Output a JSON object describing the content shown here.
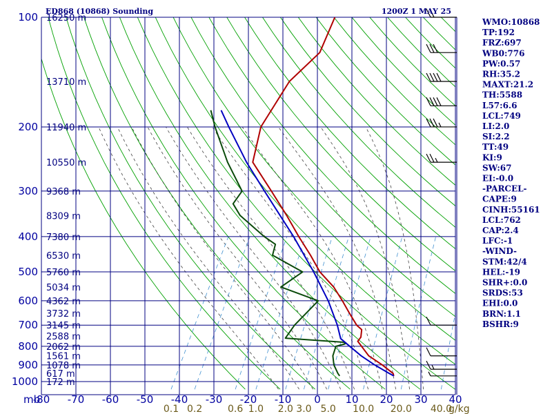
{
  "title_left": "ED868 (10868) Sounding",
  "title_right": "1200Z  1 MAY 25",
  "unit_label": "mb",
  "mixing_unit": "g/kg",
  "colors": {
    "frame": "#000080",
    "temperature": "#b00000",
    "dewpoint": "#0a4a0a",
    "parcel": "#0000c0",
    "dry_adiabat": "#00a000",
    "moist_adiabat": "#404040",
    "mixing_ratio": "#4090d0",
    "wind": "#000000"
  },
  "indices": [
    "WMO:10868",
    "TP:192",
    "FRZ:697",
    "WB0:776",
    "PW:0.57",
    "RH:35.2",
    "MAXT:21.2",
    "TH:5588",
    "L57:6.6",
    "LCL:749",
    "LI:2.0",
    "SI:2.2",
    "TT:49",
    "KI:9",
    "SW:67",
    "EI:-0.0",
    "-PARCEL-",
    "CAPE:9",
    "CINH:55161",
    "LCL:762",
    "CAP:2.4",
    "LFC:-1",
    "-WIND-",
    "STM:42/4",
    "HEL:-19",
    "SHR+:0.0",
    "SRDS:53",
    "EHI:0.0",
    "BRN:1.1",
    "BSHR:9"
  ],
  "chart_data": {
    "type": "skew-t",
    "title": "ED868 (10868) Sounding",
    "xlabel": "",
    "ylabel": "mb",
    "pressure_axis": {
      "range": [
        1000,
        100
      ],
      "scale": "log",
      "ticks": [
        "100",
        "200",
        "300",
        "400",
        "500",
        "600",
        "700",
        "800",
        "900",
        "1000"
      ]
    },
    "temperature_axis": {
      "range": [
        -80,
        40
      ],
      "ticks": [
        "-80",
        "-70",
        "-60",
        "-50",
        "-40",
        "-30",
        "-20",
        "-10",
        "0",
        "10",
        "20",
        "30",
        "40"
      ]
    },
    "mixing_ratio_ticks": [
      "0.1",
      "0.2",
      "0.6",
      "1.0",
      "2.0",
      "3.0",
      "5.0",
      "10.0",
      "20.0",
      "40.0"
    ],
    "height_labels": [
      {
        "p": 100,
        "text": "16250 m"
      },
      {
        "p": 150,
        "text": "13710 m"
      },
      {
        "p": 200,
        "text": "11940 m"
      },
      {
        "p": 250,
        "text": "10550 m"
      },
      {
        "p": 300,
        "text": "9368 m"
      },
      {
        "p": 350,
        "text": "8309 m"
      },
      {
        "p": 400,
        "text": "7380 m"
      },
      {
        "p": 450,
        "text": "6530 m"
      },
      {
        "p": 500,
        "text": "5760 m"
      },
      {
        "p": 550,
        "text": "5034 m"
      },
      {
        "p": 600,
        "text": "4362 m"
      },
      {
        "p": 650,
        "text": "3732 m"
      },
      {
        "p": 700,
        "text": "3145 m"
      },
      {
        "p": 750,
        "text": "2588 m"
      },
      {
        "p": 800,
        "text": "2062 m"
      },
      {
        "p": 850,
        "text": "1561 m"
      },
      {
        "p": 900,
        "text": "1078 m"
      },
      {
        "p": 950,
        "text": "617 m"
      },
      {
        "p": 1000,
        "text": "172 m"
      }
    ],
    "series": [
      {
        "points": [
          [
            965,
            21.2
          ],
          [
            950,
            20.6
          ],
          [
            900,
            16.0
          ],
          [
            850,
            10.6
          ],
          [
            775,
            5.0
          ],
          [
            755,
            5.2
          ],
          [
            720,
            4.2
          ],
          [
            700,
            2.0
          ],
          [
            650,
            -2.0
          ],
          [
            600,
            -6.2
          ],
          [
            550,
            -11.0
          ],
          [
            500,
            -17.5
          ],
          [
            450,
            -23.0
          ],
          [
            400,
            -29.5
          ],
          [
            350,
            -36.5
          ],
          [
            300,
            -45.0
          ],
          [
            250,
            -55.2
          ],
          [
            200,
            -58.7
          ],
          [
            150,
            -58.0
          ],
          [
            125,
            -54.0
          ],
          [
            100,
            -55.5
          ]
        ]
      },
      {
        "points": [
          [
            965,
            5.5
          ],
          [
            950,
            4.6
          ],
          [
            900,
            2.0
          ],
          [
            850,
            0.2
          ],
          [
            800,
            -0.5
          ],
          [
            790,
            1.5
          ],
          [
            785,
            2.0
          ],
          [
            780,
            1.0
          ],
          [
            775,
            -3.0
          ],
          [
            760,
            -16.5
          ],
          [
            700,
            -16.0
          ],
          [
            600,
            -13.2
          ],
          [
            550,
            -26.3
          ],
          [
            500,
            -22.5
          ],
          [
            450,
            -34.0
          ],
          [
            420,
            -35.0
          ],
          [
            400,
            -39.5
          ],
          [
            350,
            -50.0
          ],
          [
            325,
            -54.0
          ],
          [
            300,
            -53.5
          ],
          [
            250,
            -62.5
          ],
          [
            200,
            -72.0
          ],
          [
            180,
            -76.0
          ]
        ]
      },
      {
        "points": [
          [
            965,
            21.2
          ],
          [
            950,
            19.5
          ],
          [
            900,
            13.8
          ],
          [
            850,
            8.4
          ],
          [
            800,
            3.5
          ],
          [
            762,
            -0.4
          ],
          [
            700,
            -3.6
          ],
          [
            600,
            -10.3
          ],
          [
            500,
            -19.3
          ],
          [
            400,
            -31.0
          ],
          [
            300,
            -47.0
          ],
          [
            250,
            -57.0
          ],
          [
            200,
            -68.0
          ],
          [
            180,
            -73.0
          ]
        ]
      }
    ],
    "wind_barbs": [
      {
        "p": 965,
        "speed_kt": 5
      },
      {
        "p": 925,
        "speed_kt": 15
      },
      {
        "p": 850,
        "speed_kt": 10
      },
      {
        "p": 700,
        "speed_kt": 10
      },
      {
        "p": 250,
        "speed_kt": 25
      },
      {
        "p": 200,
        "speed_kt": 35
      },
      {
        "p": 175,
        "speed_kt": 40
      },
      {
        "p": 150,
        "speed_kt": 40
      },
      {
        "p": 125,
        "speed_kt": 30
      },
      {
        "p": 100,
        "speed_kt": 20
      }
    ]
  }
}
